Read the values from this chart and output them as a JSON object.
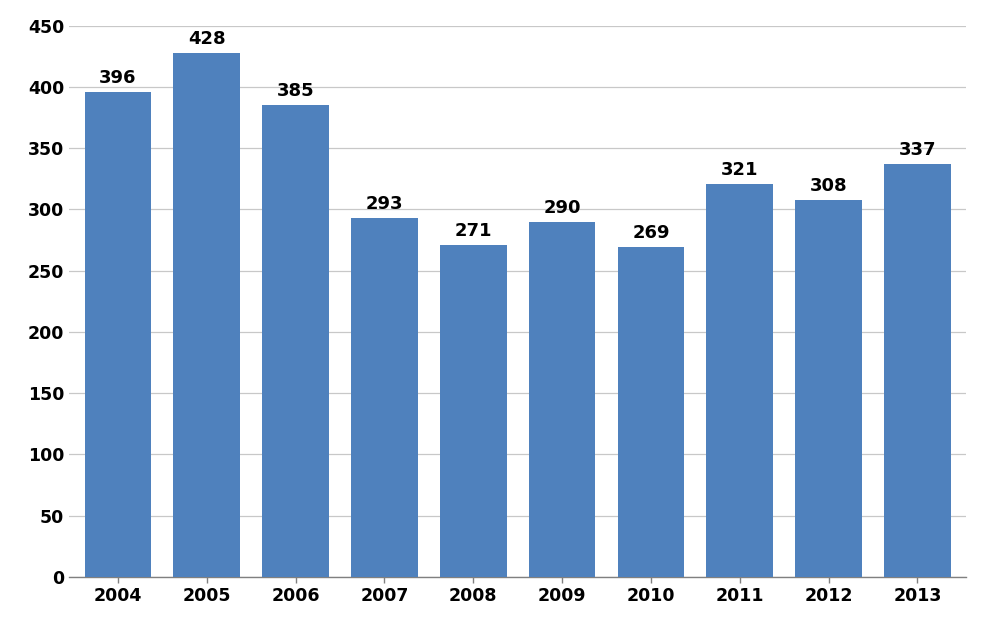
{
  "years": [
    2004,
    2005,
    2006,
    2007,
    2008,
    2009,
    2010,
    2011,
    2012,
    2013
  ],
  "values": [
    396,
    428,
    385,
    293,
    271,
    290,
    269,
    321,
    308,
    337
  ],
  "bar_color": "#4F81BD",
  "ylim": [
    0,
    450
  ],
  "yticks": [
    0,
    50,
    100,
    150,
    200,
    250,
    300,
    350,
    400,
    450
  ],
  "background_color": "#FFFFFF",
  "label_fontsize": 13,
  "tick_fontsize": 12.5,
  "bar_width": 0.75,
  "grid_color": "#C8C8C8",
  "spine_color": "#808080"
}
